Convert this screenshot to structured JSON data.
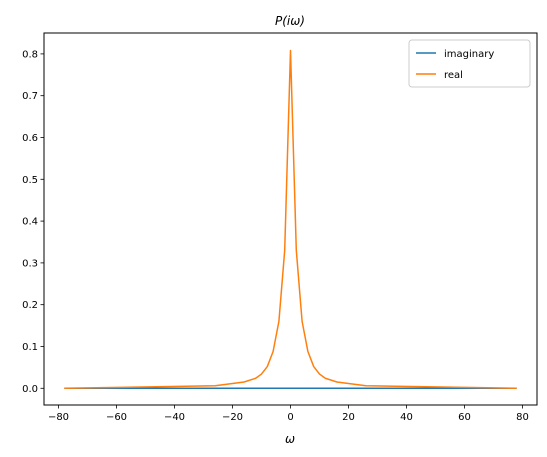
{
  "chart_data": {
    "type": "line",
    "title": "P(iω)",
    "xlabel": "ω",
    "ylabel": "",
    "xlim": [
      -85,
      85
    ],
    "ylim": [
      -0.04,
      0.85
    ],
    "xticks": [
      -80,
      -60,
      -40,
      -20,
      0,
      20,
      40,
      60,
      80
    ],
    "yticks": [
      0.0,
      0.1,
      0.2,
      0.3,
      0.4,
      0.5,
      0.6,
      0.7,
      0.8
    ],
    "xtick_labels": [
      "−80",
      "−60",
      "−40",
      "−20",
      "0",
      "20",
      "40",
      "60",
      "80"
    ],
    "ytick_labels": [
      "0.0",
      "0.1",
      "0.2",
      "0.3",
      "0.4",
      "0.5",
      "0.6",
      "0.7",
      "0.8"
    ],
    "grid": false,
    "legend_position": "top-right",
    "series": [
      {
        "name": "imaginary",
        "color": "#1f77b4",
        "x": [
          -78,
          78
        ],
        "y": [
          0.0,
          0.0
        ]
      },
      {
        "name": "real",
        "color": "#ff7f0e",
        "x": [
          -78,
          -26,
          -16,
          -12,
          -10,
          -8,
          -6,
          -4,
          -2,
          0,
          2,
          4,
          6,
          8,
          10,
          12,
          16,
          26,
          78
        ],
        "y": [
          0.0,
          0.006,
          0.015,
          0.024,
          0.034,
          0.052,
          0.088,
          0.16,
          0.33,
          0.808,
          0.33,
          0.16,
          0.088,
          0.052,
          0.034,
          0.024,
          0.015,
          0.006,
          0.0
        ]
      }
    ]
  }
}
